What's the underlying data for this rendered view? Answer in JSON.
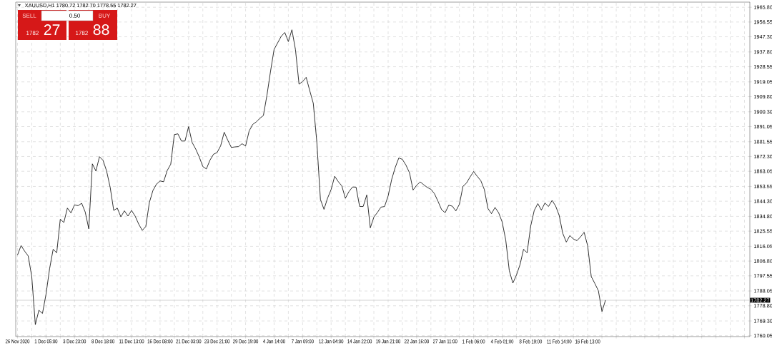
{
  "chart_data": {
    "type": "line",
    "title": "XAUUSD,H1  1780.72 1782.70 1778.55 1782.27",
    "annotations": [
      "SELL",
      "0.50",
      "BUY",
      "1782",
      "27",
      "1782",
      "88"
    ],
    "categories": [
      "26 Nov 2020",
      null,
      null,
      null,
      null,
      null,
      null,
      null,
      "1 Dec 05:00",
      null,
      null,
      null,
      null,
      null,
      null,
      null,
      "3 Dec 23:00",
      null,
      null,
      null,
      null,
      null,
      null,
      null,
      "8 Dec 18:00",
      null,
      null,
      null,
      null,
      null,
      null,
      null,
      "11 Dec 13:00",
      null,
      null,
      null,
      null,
      null,
      null,
      null,
      "16 Dec 08:00",
      null,
      null,
      null,
      null,
      null,
      null,
      null,
      "21 Dec 03:00",
      null,
      null,
      null,
      null,
      null,
      null,
      null,
      "23 Dec 21:00",
      null,
      null,
      null,
      null,
      null,
      null,
      null,
      "29 Dec 19:00",
      null,
      null,
      null,
      null,
      null,
      null,
      null,
      "4 Jan 14:00",
      null,
      null,
      null,
      null,
      null,
      null,
      null,
      "7 Jan 09:00",
      null,
      null,
      null,
      null,
      null,
      null,
      null,
      "12 Jan 04:00",
      null,
      null,
      null,
      null,
      null,
      null,
      null,
      "14 Jan 22:00",
      null,
      null,
      null,
      null,
      null,
      null,
      null,
      "19 Jan 21:00",
      null,
      null,
      null,
      null,
      null,
      null,
      null,
      "22 Jan 16:00",
      null,
      null,
      null,
      null,
      null,
      null,
      null,
      "27 Jan 11:00",
      null,
      null,
      null,
      null,
      null,
      null,
      null,
      "1 Feb 06:00",
      null,
      null,
      null,
      null,
      null,
      null,
      null,
      "4 Feb 01:00",
      null,
      null,
      null,
      null,
      null,
      null,
      null,
      "8 Feb 19:00",
      null,
      null,
      null,
      null,
      null,
      null,
      null,
      "11 Feb 14:00",
      null,
      null,
      null,
      null,
      null,
      null,
      null,
      "16 Feb 13:00",
      null,
      null,
      null,
      null,
      null,
      null,
      null,
      null,
      null,
      null,
      null,
      null,
      null,
      null,
      null,
      null,
      null,
      null,
      null,
      null,
      null,
      null,
      null,
      null,
      null,
      null,
      null,
      null,
      null,
      null,
      null,
      null,
      null,
      null,
      null,
      null,
      null,
      null,
      null,
      null,
      null,
      null,
      null,
      null,
      null
    ],
    "values": [
      1810.6,
      1816.5,
      1813.0,
      1810.0,
      1797,
      1767,
      1776,
      1774,
      1786,
      1802,
      1814.2,
      1812,
      1833,
      1831,
      1840,
      1837,
      1842,
      1841.5,
      1843,
      1837.5,
      1827,
      1867.7,
      1863.2,
      1872.2,
      1869.9,
      1863.2,
      1853,
      1838.5,
      1840,
      1834.5,
      1838.3,
      1835,
      1838.5,
      1835,
      1830,
      1826,
      1828.5,
      1843.5,
      1851,
      1855,
      1857,
      1856.5,
      1863.5,
      1867.5,
      1886,
      1886.5,
      1882,
      1882,
      1891,
      1881.1,
      1877,
      1872,
      1866,
      1864.5,
      1870,
      1873.7,
      1874.8,
      1879,
      1887.5,
      1882.5,
      1878,
      1878.3,
      1878.5,
      1880.3,
      1878.9,
      1888.3,
      1892.4,
      1894,
      1896.2,
      1898,
      1910.8,
      1925.7,
      1939.4,
      1943.5,
      1947.6,
      1950,
      1944.3,
      1951.7,
      1939.2,
      1917.6,
      1919.3,
      1921.9,
      1913.6,
      1905.6,
      1881.1,
      1845.4,
      1839.2,
      1846.2,
      1851.6,
      1859.9,
      1856.6,
      1853.9,
      1846.1,
      1850.3,
      1853.2,
      1853.1,
      1841,
      1841,
      1848.2,
      1827.6,
      1834.3,
      1837.3,
      1840.6,
      1841,
      1847.6,
      1858,
      1865.5,
      1871.4,
      1870.5,
      1866.9,
      1862.1,
      1851.3,
      1854.3,
      1856.4,
      1854.6,
      1852.9,
      1851.8,
      1849,
      1844.2,
      1839,
      1837.1,
      1841.8,
      1841.2,
      1838.2,
      1842.4,
      1853.6,
      1855.7,
      1859.5,
      1862.9,
      1859.9,
      1857.2,
      1851.6,
      1839.8,
      1836.5,
      1840.4,
      1837.1,
      1831.3,
      1820,
      1800.8,
      1793,
      1798,
      1804.5,
      1814.2,
      1812,
      1828.7,
      1838.5,
      1842.8,
      1838.7,
      1843.2,
      1841,
      1844.8,
      1841.3,
      1835.4,
      1824.2,
      1818.7,
      1822.8,
      1820.6,
      1819.6,
      1822,
      1824.8,
      1816.3,
      1797.1,
      1792.8,
      1788.2,
      1775.2,
      1782.3,
      null,
      null,
      null,
      null,
      null,
      null,
      null,
      null,
      null,
      null,
      null,
      null,
      null,
      null,
      null,
      null,
      null,
      null,
      null,
      null,
      null,
      null,
      null,
      null,
      null,
      null,
      null,
      null,
      null,
      null,
      null,
      null,
      null,
      null,
      null,
      null,
      null,
      null,
      null,
      null
    ],
    "color": "#000000",
    "marker": "none",
    "line_style": "solid",
    "grid": true,
    "ylim": [
      1759.5,
      1969
    ],
    "yticks": [
      {
        "value": 1965.8,
        "label": "1965.80"
      },
      {
        "value": 1956.55,
        "label": "1956.55"
      },
      {
        "value": 1947.3,
        "label": "1947.30"
      },
      {
        "value": 1937.8,
        "label": "1937.80"
      },
      {
        "value": 1928.55,
        "label": "1928.55"
      },
      {
        "value": 1919.05,
        "label": "1919.05"
      },
      {
        "value": 1909.8,
        "label": "1909.80"
      },
      {
        "value": 1900.3,
        "label": "1900.30"
      },
      {
        "value": 1891.05,
        "label": "1891.05"
      },
      {
        "value": 1881.55,
        "label": "1881.55"
      },
      {
        "value": 1872.3,
        "label": "1872.30"
      },
      {
        "value": 1863.05,
        "label": "1863.05"
      },
      {
        "value": 1853.55,
        "label": "1853.55"
      },
      {
        "value": 1844.3,
        "label": "1844.30"
      },
      {
        "value": 1834.8,
        "label": "1834.80"
      },
      {
        "value": 1825.55,
        "label": "1825.55"
      },
      {
        "value": 1816.05,
        "label": "1816.05"
      },
      {
        "value": 1806.8,
        "label": "1806.80"
      },
      {
        "value": 1797.55,
        "label": "1797.55"
      },
      {
        "value": 1788.05,
        "label": "1788.05"
      },
      {
        "value": 1778.8,
        "label": "1778.80"
      },
      {
        "value": 1769.3,
        "label": "1769.30"
      },
      {
        "value": 1760.05,
        "label": "1760.05"
      }
    ],
    "ref_lines": [
      {
        "axis": "y",
        "value": 1782.27,
        "label": "1782.27",
        "color": "#c0c0c0"
      }
    ]
  }
}
